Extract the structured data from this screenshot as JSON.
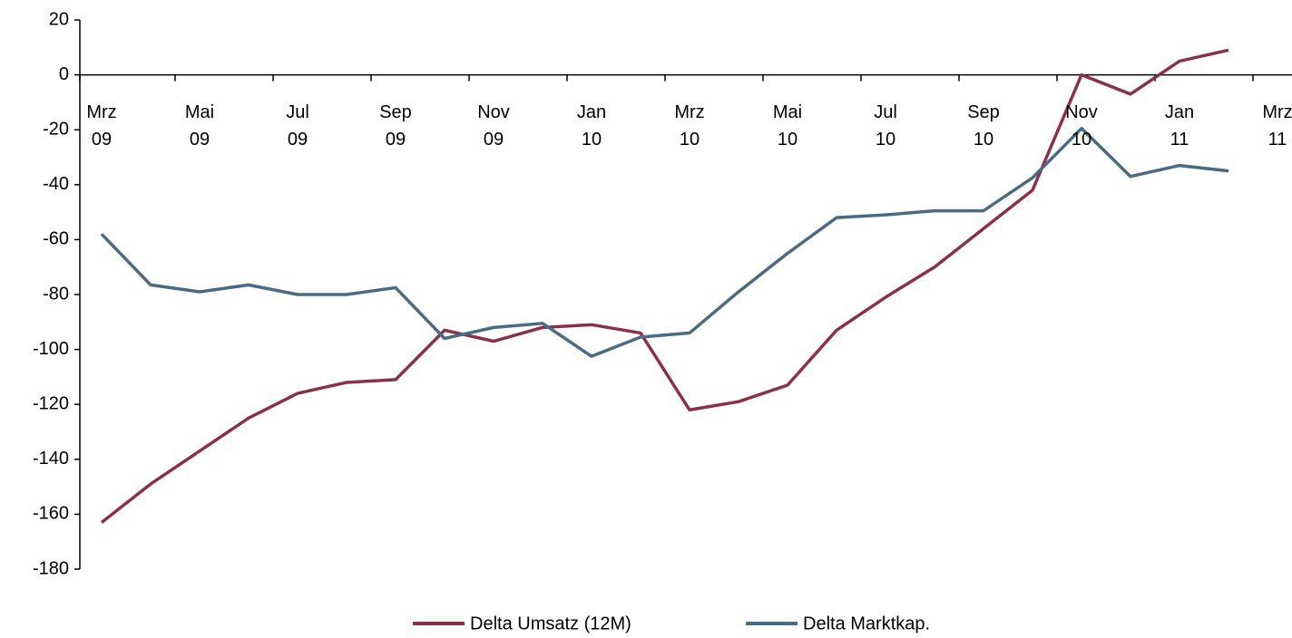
{
  "chart_data": {
    "type": "line",
    "categories": [
      "Mrz 09",
      null,
      "Mai 09",
      null,
      "Jul 09",
      null,
      "Sep 09",
      null,
      "Nov 09",
      null,
      "Jan 10",
      null,
      "Mrz 10",
      null,
      "Mai 10",
      null,
      "Jul 10",
      null,
      "Sep 10",
      null,
      "Nov 10",
      null,
      "Jan 11",
      null,
      "Mrz 11"
    ],
    "series": [
      {
        "name": "Delta Umsatz (12M)",
        "color": "#8b3049",
        "values": [
          -163,
          -149,
          -137,
          -125,
          -116,
          -112,
          -111,
          -93,
          -97,
          -92,
          -91,
          -94,
          -122,
          -119,
          -113,
          -93,
          -81,
          -70,
          -56,
          -42,
          0,
          -7,
          5,
          9,
          null
        ]
      },
      {
        "name": "Delta Marktkap.",
        "color": "#4a6b82",
        "values": [
          -58,
          -76.5,
          -79,
          -76.5,
          -80,
          -80,
          -77.5,
          -96,
          -92,
          -90.5,
          -102.5,
          -95.5,
          -94,
          -79,
          -65,
          -52,
          -51,
          -49.5,
          -49.5,
          -37.5,
          -19.5,
          -37,
          -33,
          -35,
          null
        ]
      }
    ],
    "ylim": [
      -180,
      20
    ],
    "yticks": [
      20,
      0,
      -20,
      -40,
      -60,
      -80,
      -100,
      -120,
      -140,
      -160,
      -180
    ],
    "legend": "bottom"
  }
}
